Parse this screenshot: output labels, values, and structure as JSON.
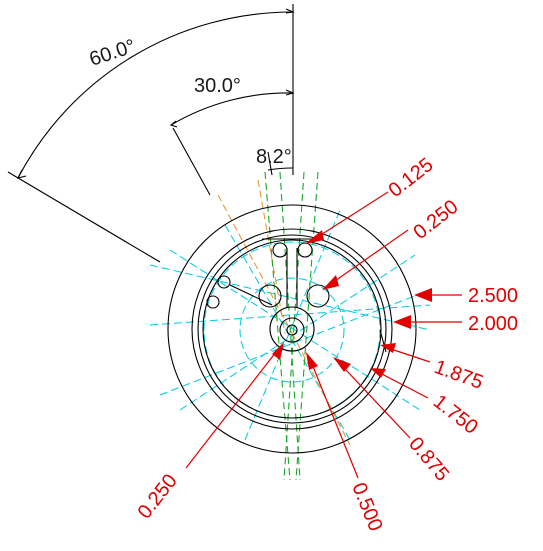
{
  "angle_dimensions": [
    {
      "id": "angle-60",
      "label": "60.0°"
    },
    {
      "id": "angle-30",
      "label": "30.0°"
    },
    {
      "id": "angle-8",
      "label": "8.2°"
    }
  ],
  "callouts": [
    {
      "id": "callout-0-125",
      "label": "0.125"
    },
    {
      "id": "callout-0-250-top",
      "label": "0.250"
    },
    {
      "id": "callout-2-500",
      "label": "2.500"
    },
    {
      "id": "callout-2-000",
      "label": "2.000"
    },
    {
      "id": "callout-1-875",
      "label": "1.875"
    },
    {
      "id": "callout-1-750",
      "label": "1.750"
    },
    {
      "id": "callout-0-875",
      "label": "0.875"
    },
    {
      "id": "callout-0-500",
      "label": "0.500"
    },
    {
      "id": "callout-0-250-bottom",
      "label": "0.250"
    }
  ],
  "colors": {
    "annotation": "#e00000",
    "geometry": "#000000",
    "centerline_cyan": "#00c8e0",
    "centerline_orange": "#e89a30",
    "centerline_green": "#1aa82a"
  }
}
